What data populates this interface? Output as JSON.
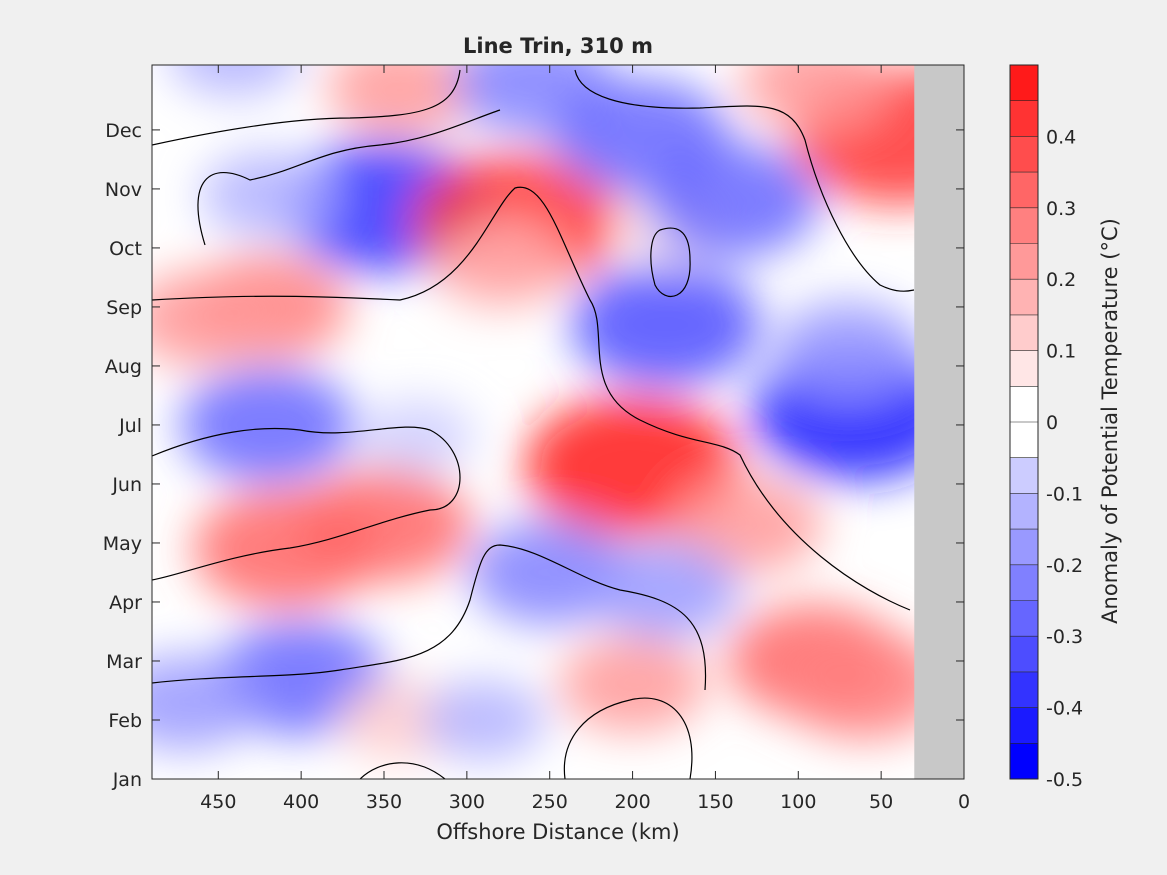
{
  "chart_data": {
    "type": "heatmap",
    "title": "Line Trin, 310 m",
    "xlabel": "Offshore Distance (km)",
    "ylabel": "",
    "xlim": [
      490,
      0
    ],
    "x_ticks": [
      450,
      400,
      350,
      300,
      250,
      200,
      150,
      100,
      50,
      0
    ],
    "y_ticks": [
      "Jan",
      "Feb",
      "Mar",
      "Apr",
      "May",
      "Jun",
      "Jul",
      "Aug",
      "Sep",
      "Oct",
      "Nov",
      "Dec"
    ],
    "colorbar": {
      "label": "Anomaly of Potential Temperature (°C)",
      "range": [
        -0.5,
        0.5
      ],
      "ticks": [
        "0.4",
        "0.3",
        "0.2",
        "0.1",
        "0",
        "-0.1",
        "-0.2",
        "-0.3",
        "-0.4",
        "-0.5"
      ],
      "levels": [
        {
          "lo": -0.5,
          "hi": -0.45,
          "color": "#0000ff"
        },
        {
          "lo": -0.45,
          "hi": -0.4,
          "color": "#1a1aff"
        },
        {
          "lo": -0.4,
          "hi": -0.35,
          "color": "#3333ff"
        },
        {
          "lo": -0.35,
          "hi": -0.3,
          "color": "#4d4dff"
        },
        {
          "lo": -0.3,
          "hi": -0.25,
          "color": "#6666ff"
        },
        {
          "lo": -0.25,
          "hi": -0.2,
          "color": "#8080ff"
        },
        {
          "lo": -0.2,
          "hi": -0.15,
          "color": "#9999ff"
        },
        {
          "lo": -0.15,
          "hi": -0.1,
          "color": "#b3b3ff"
        },
        {
          "lo": -0.1,
          "hi": -0.05,
          "color": "#ccccff"
        },
        {
          "lo": -0.05,
          "hi": 0.0,
          "color": "#ffffff"
        },
        {
          "lo": 0.0,
          "hi": 0.05,
          "color": "#ffffff"
        },
        {
          "lo": 0.05,
          "hi": 0.1,
          "color": "#ffe6e6"
        },
        {
          "lo": 0.1,
          "hi": 0.15,
          "color": "#ffcccc"
        },
        {
          "lo": 0.15,
          "hi": 0.2,
          "color": "#ffb3b3"
        },
        {
          "lo": 0.2,
          "hi": 0.25,
          "color": "#ff9999"
        },
        {
          "lo": 0.25,
          "hi": 0.3,
          "color": "#ff8080"
        },
        {
          "lo": 0.3,
          "hi": 0.35,
          "color": "#ff6666"
        },
        {
          "lo": 0.35,
          "hi": 0.4,
          "color": "#ff4d4d"
        },
        {
          "lo": 0.4,
          "hi": 0.45,
          "color": "#ff3333"
        },
        {
          "lo": 0.45,
          "hi": 0.5,
          "color": "#ff1a1a"
        }
      ]
    },
    "no_data_color": "#c8c8c8",
    "no_data_x_range": [
      30,
      0
    ],
    "zero_contour": true,
    "anomalies": [
      {
        "x": 340,
        "month": 11.7,
        "value": 0.2
      },
      {
        "x": 260,
        "month": 11.8,
        "value": -0.25
      },
      {
        "x": 440,
        "month": 12.3,
        "value": -0.15
      },
      {
        "x": 350,
        "month": 9.7,
        "value": -0.4
      },
      {
        "x": 420,
        "month": 9.9,
        "value": -0.15
      },
      {
        "x": 270,
        "month": 9.45,
        "value": 0.42
      },
      {
        "x": 175,
        "month": 9.35,
        "value": 0.06
      },
      {
        "x": 195,
        "month": 10.9,
        "value": -0.3
      },
      {
        "x": 140,
        "month": 9.8,
        "value": -0.3
      },
      {
        "x": 40,
        "month": 10.9,
        "value": 0.43
      },
      {
        "x": 90,
        "month": 11.8,
        "value": 0.2
      },
      {
        "x": 420,
        "month": 8.0,
        "value": 0.25
      },
      {
        "x": 460,
        "month": 7.8,
        "value": 0.2
      },
      {
        "x": 280,
        "month": 8.7,
        "value": 0.15
      },
      {
        "x": 180,
        "month": 7.7,
        "value": -0.35
      },
      {
        "x": 65,
        "month": 6.2,
        "value": -0.42
      },
      {
        "x": 70,
        "month": 7.3,
        "value": -0.2
      },
      {
        "x": 420,
        "month": 6.0,
        "value": -0.3
      },
      {
        "x": 330,
        "month": 5.8,
        "value": -0.08
      },
      {
        "x": 200,
        "month": 5.3,
        "value": 0.45
      },
      {
        "x": 130,
        "month": 4.3,
        "value": 0.2
      },
      {
        "x": 410,
        "month": 3.9,
        "value": 0.33
      },
      {
        "x": 350,
        "month": 4.3,
        "value": 0.3
      },
      {
        "x": 250,
        "month": 3.5,
        "value": -0.25
      },
      {
        "x": 180,
        "month": 3.2,
        "value": -0.2
      },
      {
        "x": 90,
        "month": 2.0,
        "value": 0.3
      },
      {
        "x": 60,
        "month": 1.6,
        "value": 0.28
      },
      {
        "x": 400,
        "month": 1.7,
        "value": -0.3
      },
      {
        "x": 470,
        "month": 1.3,
        "value": -0.2
      },
      {
        "x": 200,
        "month": 1.6,
        "value": 0.2
      },
      {
        "x": 340,
        "month": 1.0,
        "value": 0.12
      },
      {
        "x": 290,
        "month": 1.0,
        "value": -0.12
      }
    ]
  }
}
